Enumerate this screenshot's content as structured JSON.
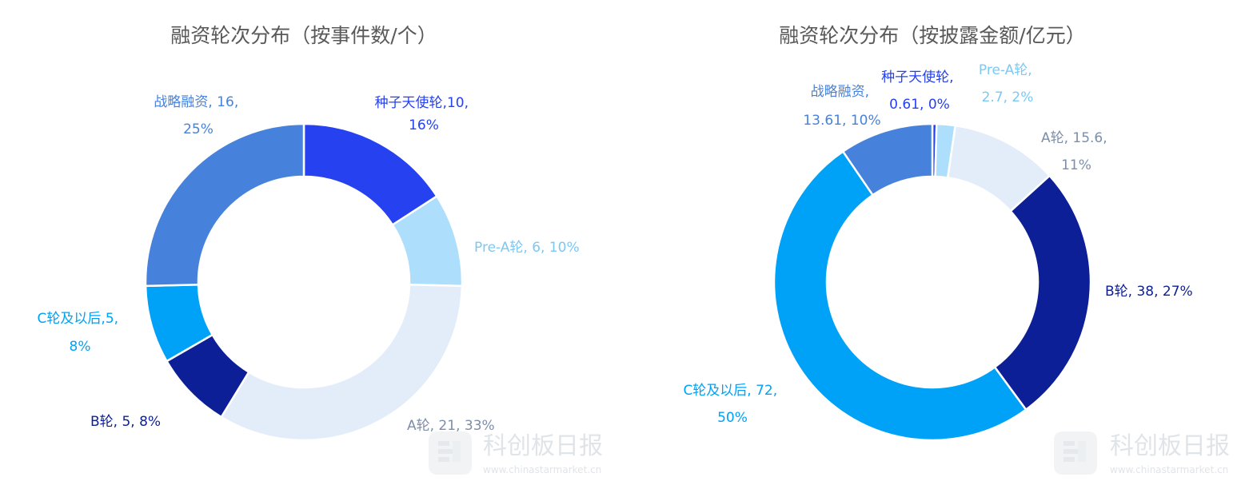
{
  "chart_data": [
    {
      "type": "pie",
      "title": "融资轮次分布（按事件数/个）",
      "slices": [
        {
          "name": "种子天使轮",
          "value": 10,
          "percent": "16%",
          "color": "#2541F0",
          "label_line1": "种子天使轮,10,",
          "label_line2": "16%"
        },
        {
          "name": "Pre-A轮",
          "value": 6,
          "percent": "10%",
          "color": "#ADDFFD",
          "label_line1": "Pre-A轮, 6, 10%",
          "label_line2": ""
        },
        {
          "name": "A轮",
          "value": 21,
          "percent": "33%",
          "color": "#E3EDF9",
          "label_line1": "A轮, 21, 33%",
          "label_line2": ""
        },
        {
          "name": "B轮",
          "value": 5,
          "percent": "8%",
          "color": "#0D1F96",
          "label_line1": "B轮, 5, 8%",
          "label_line2": ""
        },
        {
          "name": "C轮及以后",
          "value": 5,
          "percent": "8%",
          "color": "#00A2F7",
          "label_line1": "C轮及以后,5,",
          "label_line2": "8%"
        },
        {
          "name": "战略融资",
          "value": 16,
          "percent": "25%",
          "color": "#4682DC",
          "label_line1": "战略融资, 16,",
          "label_line2": "25%"
        }
      ]
    },
    {
      "type": "pie",
      "title": "融资轮次分布（按披露金额/亿元）",
      "slices": [
        {
          "name": "种子天使轮",
          "value": 0.61,
          "percent": "0%",
          "color": "#2541F0",
          "label_line1": "种子天使轮,",
          "label_line2": "0.61, 0%"
        },
        {
          "name": "Pre-A轮",
          "value": 2.7,
          "percent": "2%",
          "color": "#ADDFFD",
          "label_line1": "Pre-A轮,",
          "label_line2": "2.7, 2%"
        },
        {
          "name": "A轮",
          "value": 15.6,
          "percent": "11%",
          "color": "#E3EDF9",
          "label_line1": "A轮, 15.6,",
          "label_line2": "11%"
        },
        {
          "name": "B轮",
          "value": 38,
          "percent": "27%",
          "color": "#0D1F96",
          "label_line1": "B轮, 38, 27%",
          "label_line2": ""
        },
        {
          "name": "C轮及以后",
          "value": 72,
          "percent": "50%",
          "color": "#00A2F7",
          "label_line1": "C轮及以后, 72,",
          "label_line2": "50%"
        },
        {
          "name": "战略融资",
          "value": 13.61,
          "percent": "10%",
          "color": "#4682DC",
          "label_line1": "战略融资,",
          "label_line2": "13.61, 10%"
        }
      ]
    }
  ],
  "watermark": {
    "brand": "科创板日报",
    "url": "www.chinastarmarket.cn"
  },
  "colors": {
    "title": "#595959",
    "label_pre_a": "#7CC8F4",
    "label_a": "#7D8EA8",
    "label_dark": "#0D1F96",
    "label_seed": "#2541F0",
    "label_c": "#00A2F7",
    "label_strategy": "#4682DC",
    "watermark": "#CFD5DC"
  }
}
